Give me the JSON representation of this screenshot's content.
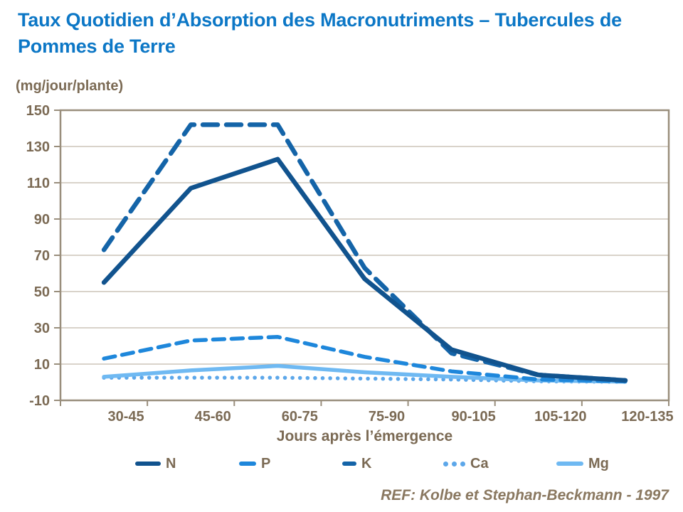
{
  "title": "Taux Quotidien d’Absorption des Macronutriments – Tubercules de Pommes de Terre",
  "subtitle": "(mg/jour/plante)",
  "reference": "REF: Kolbe et Stephan-Beckmann - 1997",
  "colors": {
    "title": "#0C77C6",
    "axis_text": "#7B6A54",
    "plot_border": "#998E7C",
    "gridline": "#C2B9AB",
    "reference_text": "#8A7860"
  },
  "chart_data": {
    "type": "line",
    "title": "Taux Quotidien d’Absorption des Macronutriments – Tubercules de Pommes de Terre",
    "unit_label": "(mg/jour/plante)",
    "xlabel": "Jours après l’émergence",
    "ylabel": "",
    "ylim": [
      -10,
      150
    ],
    "yticks": [
      150,
      130,
      110,
      90,
      70,
      50,
      30,
      10,
      -10
    ],
    "grid": true,
    "legend_position": "bottom",
    "categories": [
      "30-45",
      "45-60",
      "60-75",
      "75-90",
      "90-105",
      "105-120",
      "120-135"
    ],
    "series": [
      {
        "name": "N",
        "style": "solid",
        "color": "#11538E",
        "values": [
          55,
          107,
          123,
          57,
          18,
          4,
          1
        ]
      },
      {
        "name": "P",
        "style": "dashed",
        "color": "#1E87DB",
        "values": [
          13,
          23,
          25,
          14,
          6,
          1.5,
          0.5
        ]
      },
      {
        "name": "K",
        "style": "dashed",
        "color": "#1464A8",
        "values": [
          73,
          142,
          142,
          63,
          16,
          4,
          1
        ]
      },
      {
        "name": "Ca",
        "style": "dotted",
        "color": "#5CA7EA",
        "values": [
          2.5,
          2.5,
          2.5,
          2,
          1.5,
          0.5,
          0.2
        ]
      },
      {
        "name": "Mg",
        "style": "solid",
        "color": "#6FB9F2",
        "values": [
          3,
          6.5,
          9,
          5.5,
          3,
          1,
          0.3
        ]
      }
    ]
  }
}
